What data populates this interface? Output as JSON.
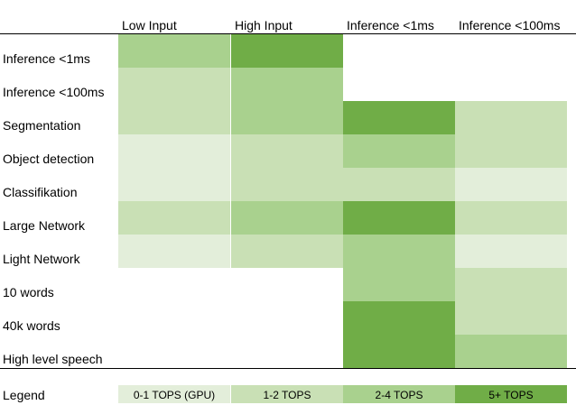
{
  "chart_data": {
    "type": "heatmap",
    "columns": [
      "Low Input",
      "High Input",
      "Inference <1ms",
      "Inference <100ms"
    ],
    "rows": [
      "Inference <1ms",
      "Inference <100ms",
      "Segmentation",
      "Object detection",
      "Classifikation",
      "Large Network",
      "Light Network",
      "10 words",
      "40k words",
      "High level speech"
    ],
    "levels": [
      {
        "level": 1,
        "label": "0-1 TOPS (GPU)",
        "color": "#e3eeda"
      },
      {
        "level": 2,
        "label": "1-2 TOPS",
        "color": "#c9e0b5"
      },
      {
        "level": 3,
        "label": "2-4 TOPS",
        "color": "#a9d18e"
      },
      {
        "level": 4,
        "label": "5+ TOPS",
        "color": "#70ad47"
      }
    ],
    "values": [
      [
        3,
        4,
        null,
        null
      ],
      [
        2,
        3,
        null,
        null
      ],
      [
        2,
        3,
        4,
        2
      ],
      [
        1,
        2,
        3,
        2
      ],
      [
        1,
        2,
        2,
        1
      ],
      [
        2,
        3,
        4,
        2
      ],
      [
        1,
        2,
        3,
        1
      ],
      [
        null,
        null,
        3,
        2
      ],
      [
        null,
        null,
        4,
        2
      ],
      [
        null,
        null,
        4,
        3
      ]
    ]
  },
  "legend": {
    "title": "Legend"
  }
}
